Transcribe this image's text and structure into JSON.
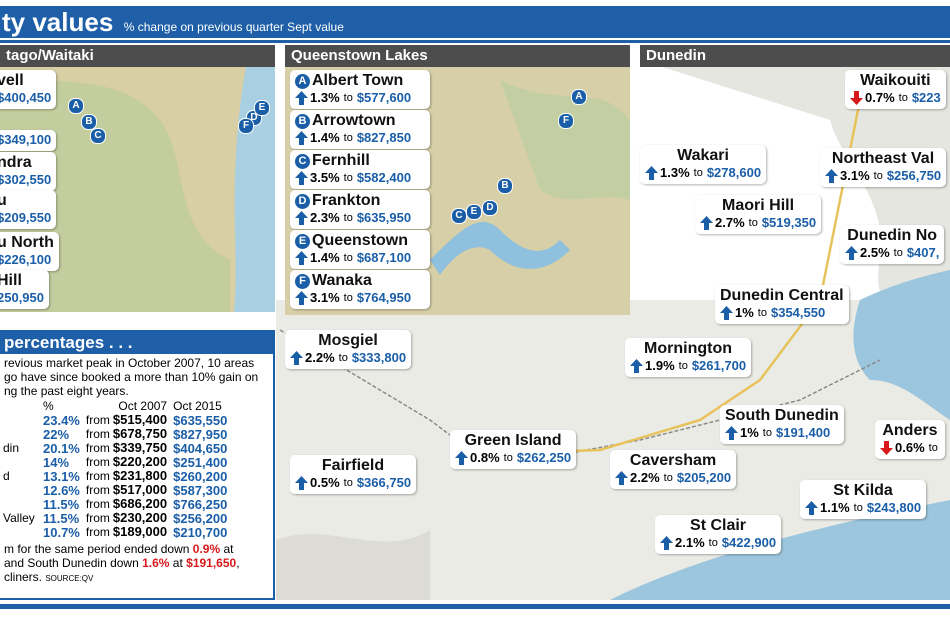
{
  "header": {
    "title": "ty values",
    "subtitle": "% change on previous quarter Sept value"
  },
  "connector": "to",
  "otago": {
    "title": "tago/Waitaki",
    "labels": [
      {
        "name": "vell",
        "value": "$400,450"
      },
      {
        "value": "$349,100"
      },
      {
        "name": "ndra",
        "value": "$302,550"
      },
      {
        "name": "u",
        "value": "$209,550"
      },
      {
        "name": "u North",
        "value": "$226,100"
      },
      {
        "name": "Hill",
        "value": "250,950"
      }
    ],
    "markers": [
      "A",
      "B",
      "C",
      "D",
      "E",
      "F"
    ]
  },
  "queenstown": {
    "title": "Queenstown Lakes",
    "items": [
      {
        "letter": "A",
        "name": "Albert Town",
        "change": "1.3%",
        "value": "$577,600",
        "direction": "up"
      },
      {
        "letter": "B",
        "name": "Arrowtown",
        "change": "1.4%",
        "value": "$827,850",
        "direction": "up"
      },
      {
        "letter": "C",
        "name": "Fernhill",
        "change": "3.5%",
        "value": "$582,400",
        "direction": "up"
      },
      {
        "letter": "D",
        "name": "Frankton",
        "change": "2.3%",
        "value": "$635,950",
        "direction": "up"
      },
      {
        "letter": "E",
        "name": "Queenstown",
        "change": "1.4%",
        "value": "$687,100",
        "direction": "up"
      },
      {
        "letter": "F",
        "name": "Wanaka",
        "change": "3.1%",
        "value": "$764,950",
        "direction": "up"
      }
    ],
    "markers": [
      "A",
      "F",
      "B",
      "C",
      "E",
      "D"
    ]
  },
  "dunedin": {
    "title": "Dunedin",
    "labels": [
      {
        "name": "Waikouiti",
        "change": "0.7%",
        "value": "$223",
        "direction": "down"
      },
      {
        "name": "Wakari",
        "change": "1.3%",
        "value": "$278,600",
        "direction": "up"
      },
      {
        "name": "Northeast Val",
        "change": "3.1%",
        "value": "$256,750",
        "direction": "up"
      },
      {
        "name": "Maori Hill",
        "change": "2.7%",
        "value": "$519,350",
        "direction": "up"
      },
      {
        "name": "Dunedin No",
        "change": "2.5%",
        "value": "$407,",
        "direction": "up"
      },
      {
        "name": "Dunedin Central",
        "change": "1%",
        "value": "$354,550",
        "direction": "up"
      },
      {
        "name": "Mornington",
        "change": "1.9%",
        "value": "$261,700",
        "direction": "up"
      },
      {
        "name": "Mosgiel",
        "change": "2.2%",
        "value": "$333,800",
        "direction": "up"
      },
      {
        "name": "South Dunedin",
        "change": "1%",
        "value": "$191,400",
        "direction": "up"
      },
      {
        "name": "Anders",
        "change": "0.6%",
        "direction": "down"
      },
      {
        "name": "Green Island",
        "change": "0.8%",
        "value": "$262,250",
        "direction": "up"
      },
      {
        "name": "Caversham",
        "change": "2.2%",
        "value": "$205,200",
        "direction": "up"
      },
      {
        "name": "Fairfield",
        "change": "0.5%",
        "value": "$366,750",
        "direction": "up"
      },
      {
        "name": "St Kilda",
        "change": "1.1%",
        "value": "$243,800",
        "direction": "up"
      },
      {
        "name": "St Clair",
        "change": "2.1%",
        "value": "$422,900",
        "direction": "up"
      }
    ]
  },
  "percentages": {
    "title": "percentages . . .",
    "intro": [
      "revious market peak in October 2007, 10 areas",
      "go have since booked a more than 10% gain on",
      "ng the past eight years."
    ],
    "columns": [
      "%",
      "Oct 2007",
      "Oct 2015"
    ],
    "from": "from",
    "rows": [
      {
        "pct": "23.4%",
        "v2007": "$515,400",
        "v2015": "$635,550"
      },
      {
        "pct": "22%",
        "v2007": "$678,750",
        "v2015": "$827,950"
      },
      {
        "name": "din",
        "pct": "20.1%",
        "v2007": "$339,750",
        "v2015": "$404,650"
      },
      {
        "pct": "14%",
        "v2007": "$220,200",
        "v2015": "$251,400"
      },
      {
        "name": "d",
        "pct": "13.1%",
        "v2007": "$231,800",
        "v2015": "$260,200"
      },
      {
        "pct": "12.6%",
        "v2007": "$517,000",
        "v2015": "$587,300"
      },
      {
        "pct": "11.5%",
        "v2007": "$686,200",
        "v2015": "$766,250"
      },
      {
        "name": "Valley",
        "pct": "11.5%",
        "v2007": "$230,200",
        "v2015": "$256,200"
      },
      {
        "pct": "10.7%",
        "v2007": "$189,000",
        "v2015": "$210,700"
      }
    ],
    "footer": [
      [
        {
          "text": "m for the same period ended down "
        },
        {
          "text": "0.9%",
          "style": "red"
        },
        {
          "text": " at"
        }
      ],
      [
        {
          "text": "and South Dunedin down "
        },
        {
          "text": "1.6%",
          "style": "red"
        },
        {
          "text": " at "
        },
        {
          "text": "$191,650",
          "style": "red"
        },
        {
          "text": ","
        }
      ],
      [
        {
          "text": "cliners. "
        },
        {
          "text": "SOURCE:QV",
          "style": "small"
        }
      ]
    ]
  }
}
